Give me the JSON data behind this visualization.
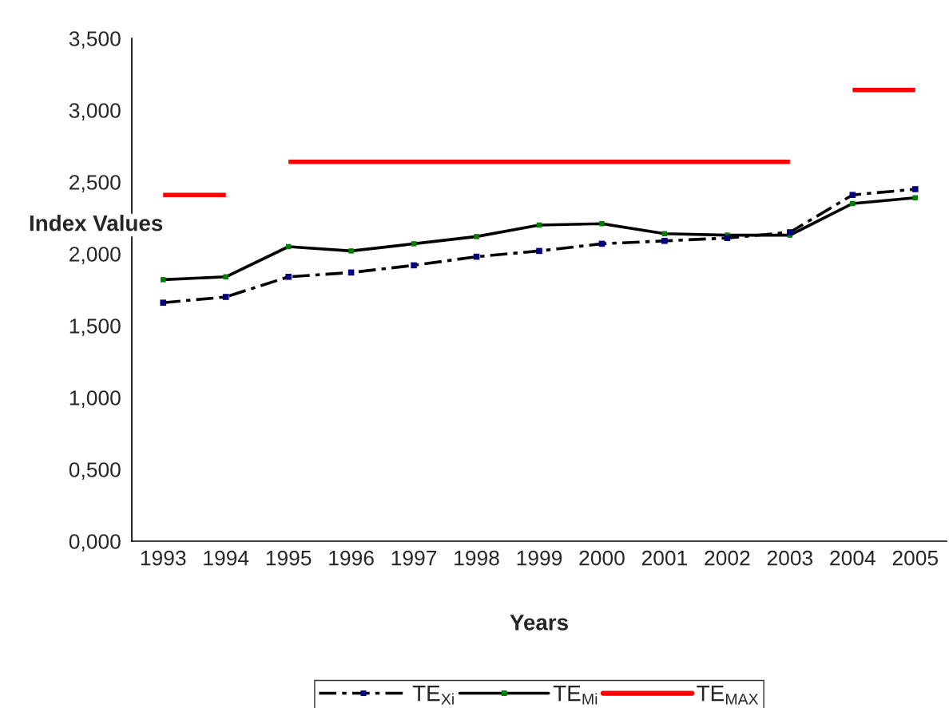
{
  "chart_data": {
    "type": "line",
    "xlabel": "Years",
    "ylabel": "Index Values",
    "categories": [
      "1993",
      "1994",
      "1995",
      "1996",
      "1997",
      "1998",
      "1999",
      "2000",
      "2001",
      "2002",
      "2003",
      "2004",
      "2005"
    ],
    "series": [
      {
        "name": "TE$_{Xi}$",
        "color": "#000000",
        "line_style": "dashed",
        "marker": "square",
        "colors": [
          "#000080",
          "#000080",
          "#000080",
          "#000080",
          "#000080",
          "#000080",
          "#000080",
          "#000080",
          "#000080",
          "#000080",
          "#000080",
          "#000080",
          "#000080"
        ],
        "values": [
          1.66,
          1.7,
          1.84,
          1.87,
          1.92,
          1.98,
          2.02,
          2.07,
          2.09,
          2.11,
          2.15,
          2.41,
          2.45
        ]
      },
      {
        "name": "TE$_{Mi}$",
        "color": "#000000",
        "line_style": "solid",
        "marker": "square",
        "colors": [
          "#008000",
          "#008000",
          "#008000",
          "#008000",
          "#008000",
          "#008000",
          "#008000",
          "#008000",
          "#008000",
          "#008000",
          "#008000",
          "#008000",
          "#008000"
        ],
        "values": [
          1.82,
          1.84,
          2.05,
          2.02,
          2.07,
          2.12,
          2.2,
          2.21,
          2.14,
          2.13,
          2.13,
          2.35,
          2.39
        ]
      },
      {
        "name": "TE$_{MAX}$",
        "type": "step",
        "color": "#ff0000",
        "line_style": "solid",
        "marker": "none",
        "values": [
          2.41,
          2.41,
          2.64,
          2.64,
          2.64,
          2.64,
          2.64,
          2.64,
          2.64,
          2.64,
          2.64,
          3.14,
          3.14
        ]
      }
    ],
    "ylim": [
      0,
      3.5
    ],
    "yticks": [
      {
        "value": 0,
        "label": "0,000"
      },
      {
        "value": 0.5,
        "label": "0,500"
      },
      {
        "value": 1,
        "label": "1,000"
      },
      {
        "value": 1.5,
        "label": "1,500"
      },
      {
        "value": 2,
        "label": "2,000"
      },
      {
        "value": 2.5,
        "label": "2,500"
      },
      {
        "value": 3,
        "label": "3,000"
      },
      {
        "value": 3.5,
        "label": "3,500"
      }
    ],
    "grid": false,
    "legend": "bottom"
  }
}
